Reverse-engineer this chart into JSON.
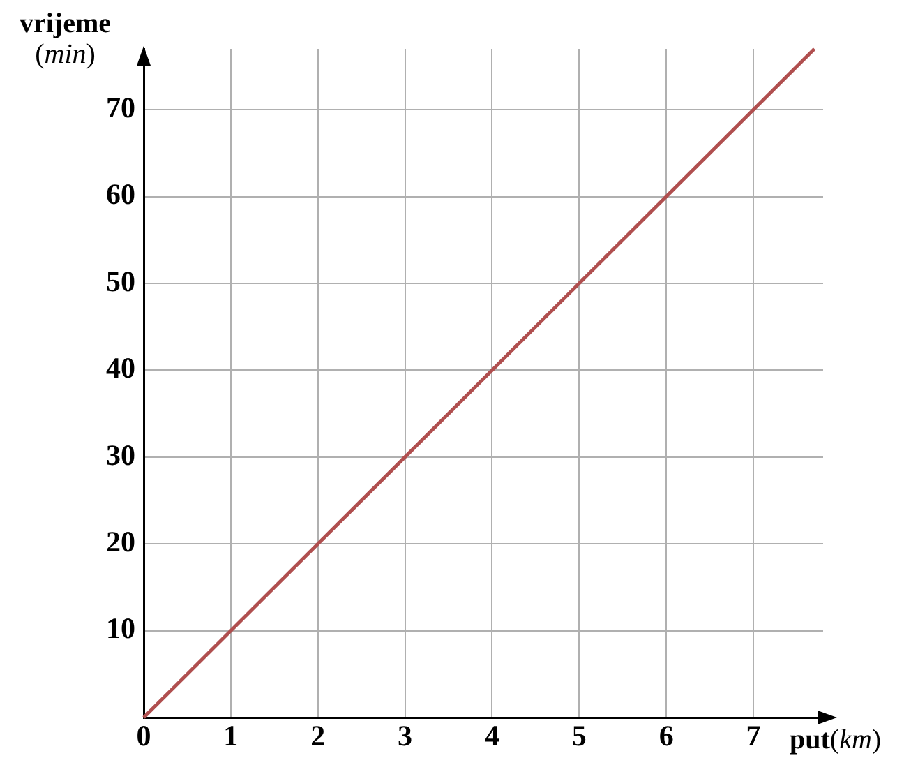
{
  "chart_data": {
    "type": "line",
    "xlabel": "put(km)",
    "ylabel": "vrijeme (min)",
    "x": [
      0,
      7.7
    ],
    "series": [
      {
        "color": "#b04f4f",
        "values": [
          0,
          77
        ]
      }
    ],
    "xlim": [
      0,
      7.8
    ],
    "ylim": [
      0,
      77
    ],
    "xticks": [
      0,
      1,
      2,
      3,
      4,
      5,
      6,
      7
    ],
    "yticks": [
      {
        "value": 0,
        "label": null
      },
      10,
      20,
      30,
      40,
      50,
      60,
      70
    ],
    "grid": true,
    "legend": false,
    "marker": "none",
    "line_style": "solid"
  }
}
